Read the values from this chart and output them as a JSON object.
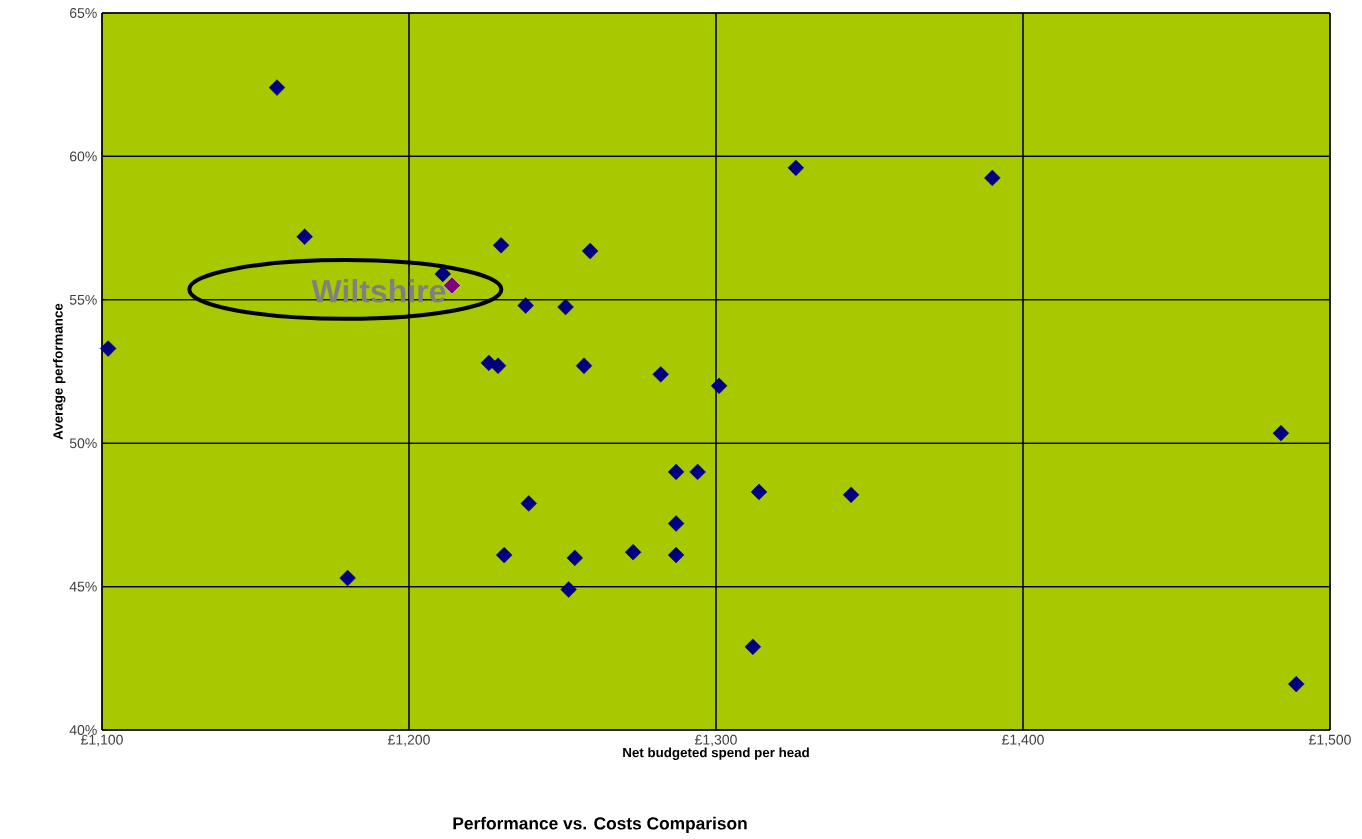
{
  "chart_data": {
    "type": "scatter",
    "title": "Performance vs. Costs Comparison",
    "xlabel": "Net budgeted spend per head",
    "ylabel": "Average performance",
    "xlim": [
      1100,
      1500
    ],
    "ylim": [
      40,
      65
    ],
    "xticks": [
      {
        "value": 1100,
        "label": "£1,100"
      },
      {
        "value": 1200,
        "label": "£1,200"
      },
      {
        "value": 1300,
        "label": "£1,300"
      },
      {
        "value": 1400,
        "label": "£1,400"
      },
      {
        "value": 1500,
        "label": "£1,500"
      }
    ],
    "yticks": [
      {
        "value": 40,
        "label": "40%"
      },
      {
        "value": 45,
        "label": "45%"
      },
      {
        "value": 50,
        "label": "50%"
      },
      {
        "value": 55,
        "label": "55%"
      },
      {
        "value": 60,
        "label": "60%"
      },
      {
        "value": 65,
        "label": "65%"
      }
    ],
    "grid": true,
    "marker": "diamond",
    "series": [
      {
        "color": "#000080",
        "x": [
          1157,
          1102,
          1166,
          1180,
          1211,
          1230,
          1259,
          1238,
          1251,
          1226,
          1229,
          1257,
          1282,
          1301,
          1287,
          1294,
          1314,
          1239,
          1287,
          1231,
          1254,
          1273,
          1287,
          1252,
          1344,
          1312,
          1326,
          1390,
          1484,
          1489
        ],
        "values": [
          62.4,
          53.3,
          57.2,
          45.3,
          55.9,
          56.9,
          56.7,
          54.8,
          54.75,
          52.8,
          52.7,
          52.7,
          52.4,
          52.0,
          49.0,
          49.0,
          48.3,
          47.9,
          47.2,
          46.1,
          46.0,
          46.2,
          46.1,
          44.9,
          48.2,
          42.9,
          59.6,
          59.25,
          50.35,
          41.6
        ]
      },
      {
        "name": "Wiltshire",
        "color": "#800080",
        "x": [
          1214
        ],
        "values": [
          55.5
        ]
      }
    ]
  }
}
